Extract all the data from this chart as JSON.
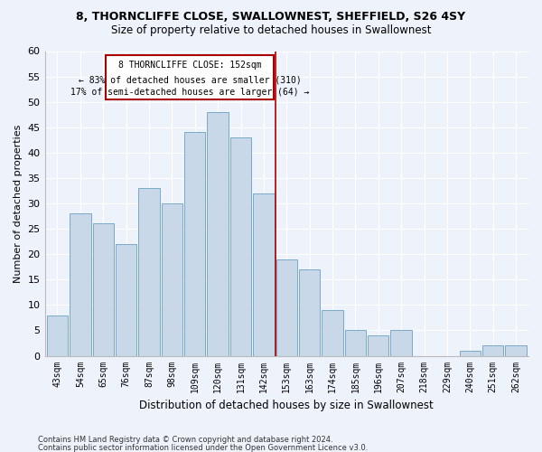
{
  "title": "8, THORNCLIFFE CLOSE, SWALLOWNEST, SHEFFIELD, S26 4SY",
  "subtitle": "Size of property relative to detached houses in Swallownest",
  "xlabel": "Distribution of detached houses by size in Swallownest",
  "ylabel": "Number of detached properties",
  "footnote1": "Contains HM Land Registry data © Crown copyright and database right 2024.",
  "footnote2": "Contains public sector information licensed under the Open Government Licence v3.0.",
  "categories": [
    "43sqm",
    "54sqm",
    "65sqm",
    "76sqm",
    "87sqm",
    "98sqm",
    "109sqm",
    "120sqm",
    "131sqm",
    "142sqm",
    "153sqm",
    "163sqm",
    "174sqm",
    "185sqm",
    "196sqm",
    "207sqm",
    "218sqm",
    "229sqm",
    "240sqm",
    "251sqm",
    "262sqm"
  ],
  "values": [
    8,
    28,
    26,
    22,
    33,
    30,
    44,
    48,
    43,
    32,
    19,
    17,
    9,
    5,
    4,
    5,
    0,
    0,
    1,
    2,
    2
  ],
  "bar_color": "#c8d8e8",
  "bar_edge_color": "#7aaac8",
  "annotation_text_line1": "8 THORNCLIFFE CLOSE: 152sqm",
  "annotation_text_line2": "← 83% of detached houses are smaller (310)",
  "annotation_text_line3": "17% of semi-detached houses are larger (64) →",
  "annotation_box_color": "#aa0000",
  "ylim": [
    0,
    60
  ],
  "yticks": [
    0,
    5,
    10,
    15,
    20,
    25,
    30,
    35,
    40,
    45,
    50,
    55,
    60
  ],
  "bg_color": "#eef2fb",
  "grid_color": "#ffffff"
}
